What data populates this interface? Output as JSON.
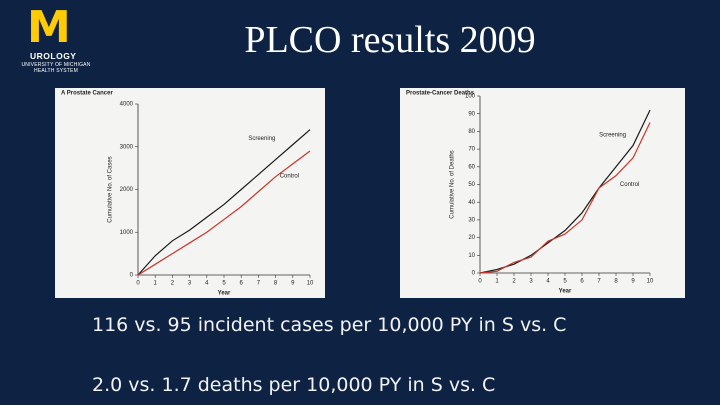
{
  "logo": {
    "mark": "M",
    "unit": "UROLOGY",
    "line1": "UNIVERSITY OF MICHIGAN",
    "line2": "HEALTH SYSTEM"
  },
  "title": "PLCO results 2009",
  "chart_data": [
    {
      "type": "line",
      "title": "A  Prostate Cancer",
      "x_label": "Year",
      "y_label": "Cumulative No. of Cases",
      "x": [
        0,
        1,
        2,
        3,
        4,
        5,
        6,
        7,
        8,
        9,
        10
      ],
      "xlim": [
        0,
        10
      ],
      "xticks": [
        0,
        1,
        2,
        3,
        4,
        5,
        6,
        7,
        8,
        9,
        10
      ],
      "ylim": [
        0,
        4000
      ],
      "yticks": [
        0,
        1000,
        2000,
        3000,
        4000
      ],
      "series": [
        {
          "name": "Screening",
          "color": "#1a1a1a",
          "values": [
            0,
            450,
            800,
            1050,
            1350,
            1650,
            2000,
            2350,
            2700,
            3050,
            3400
          ]
        },
        {
          "name": "Control",
          "color": "#c8352b",
          "values": [
            0,
            250,
            500,
            750,
            1000,
            1300,
            1600,
            1950,
            2300,
            2600,
            2900
          ]
        }
      ]
    },
    {
      "type": "line",
      "title": "Prostate-Cancer Deaths",
      "x_label": "Year",
      "y_label": "Cumulative No. of Deaths",
      "x": [
        0,
        1,
        2,
        3,
        4,
        5,
        6,
        7,
        8,
        9,
        10
      ],
      "xlim": [
        0,
        10
      ],
      "xticks": [
        0,
        1,
        2,
        3,
        4,
        5,
        6,
        7,
        8,
        9,
        10
      ],
      "ylim": [
        0,
        100
      ],
      "yticks": [
        0,
        10,
        20,
        30,
        40,
        50,
        60,
        70,
        80,
        90,
        100
      ],
      "series": [
        {
          "name": "Screening",
          "color": "#1a1a1a",
          "values": [
            0,
            2,
            5,
            10,
            17,
            24,
            34,
            48,
            60,
            72,
            92
          ]
        },
        {
          "name": "Control",
          "color": "#c8352b",
          "values": [
            0,
            1,
            6,
            9,
            18,
            22,
            30,
            48,
            55,
            65,
            85
          ]
        }
      ]
    }
  ],
  "bullets": [
    "116 vs. 95 incident cases per 10,000 PY in S vs. C",
    "2.0 vs. 1.7 deaths per 10,000 PY in S vs. C"
  ]
}
